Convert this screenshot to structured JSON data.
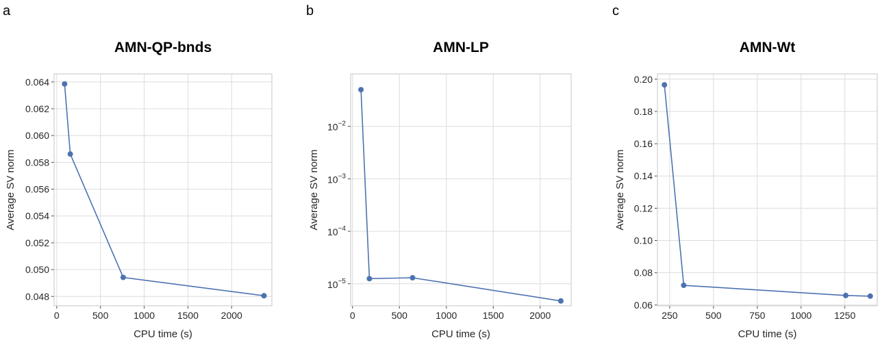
{
  "colors": {
    "series": "#4c72b0"
  },
  "chart_data": [
    {
      "panel": "a",
      "type": "line",
      "title": "AMN-QP-bnds",
      "xlabel": "CPU time (s)",
      "ylabel": "Average SV norm",
      "x": [
        90,
        155,
        760,
        2370
      ],
      "y": [
        0.06385,
        0.05862,
        0.04942,
        0.04805
      ],
      "xlim": [
        -30,
        2460
      ],
      "ylim": [
        0.0473,
        0.0646
      ],
      "xscale": "linear",
      "yscale": "linear",
      "xticks": [
        0,
        500,
        1000,
        1500,
        2000
      ],
      "xtick_labels": [
        "0",
        "500",
        "1000",
        "1500",
        "2000"
      ],
      "yticks": [
        0.048,
        0.05,
        0.052,
        0.054,
        0.056,
        0.058,
        0.06,
        0.062,
        0.064
      ],
      "ytick_labels": [
        "0.048",
        "0.050",
        "0.052",
        "0.054",
        "0.056",
        "0.058",
        "0.060",
        "0.062",
        "0.064"
      ],
      "grid": true
    },
    {
      "panel": "b",
      "type": "line",
      "title": "AMN-LP",
      "xlabel": "CPU time (s)",
      "ylabel": "Average SV norm",
      "x": [
        90,
        180,
        640,
        2220
      ],
      "y": [
        0.05,
        1.25e-05,
        1.3e-05,
        4.7e-06
      ],
      "xlim": [
        -20,
        2330
      ],
      "ylim": [
        3.8e-06,
        0.1
      ],
      "xscale": "linear",
      "yscale": "log",
      "xticks": [
        0,
        500,
        1000,
        1500,
        2000
      ],
      "xtick_labels": [
        "0",
        "500",
        "1000",
        "1500",
        "2000"
      ],
      "yticks": [
        1e-05,
        0.0001,
        0.001,
        0.01
      ],
      "ytick_labels": [
        {
          "base": "10",
          "exp": "−5"
        },
        {
          "base": "10",
          "exp": "−4"
        },
        {
          "base": "10",
          "exp": "−3"
        },
        {
          "base": "10",
          "exp": "−2"
        }
      ],
      "grid": true
    },
    {
      "panel": "c",
      "type": "line",
      "title": "AMN-Wt",
      "xlabel": "CPU time (s)",
      "ylabel": "Average SV norm",
      "x": [
        220,
        330,
        1255,
        1395
      ],
      "y": [
        0.1965,
        0.0722,
        0.0659,
        0.0655
      ],
      "xlim": [
        180,
        1435
      ],
      "ylim": [
        0.0595,
        0.2033
      ],
      "xscale": "linear",
      "yscale": "linear",
      "xticks": [
        250,
        500,
        750,
        1000,
        1250
      ],
      "xtick_labels": [
        "250",
        "500",
        "750",
        "1000",
        "1250"
      ],
      "yticks": [
        0.06,
        0.08,
        0.1,
        0.12,
        0.14,
        0.16,
        0.18,
        0.2
      ],
      "ytick_labels": [
        "0.06",
        "0.08",
        "0.10",
        "0.12",
        "0.14",
        "0.16",
        "0.18",
        "0.20"
      ],
      "grid": true
    }
  ]
}
